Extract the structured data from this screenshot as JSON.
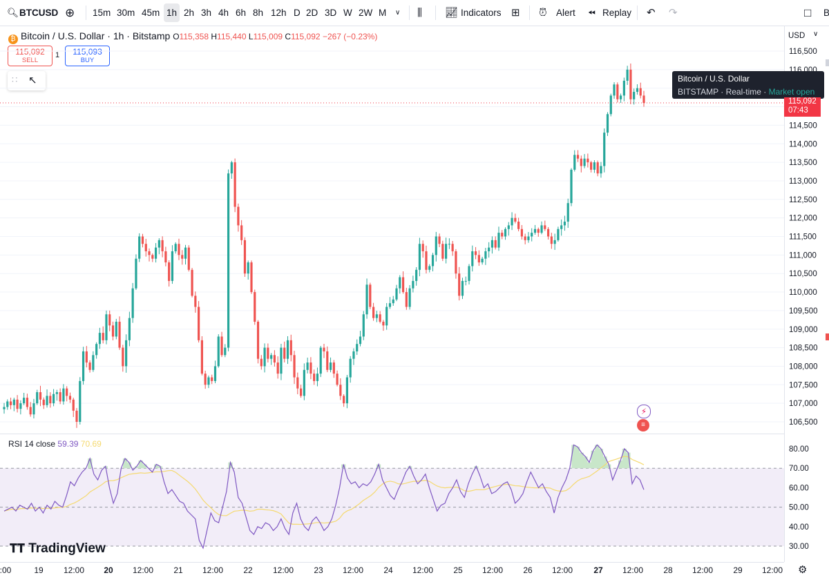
{
  "toolbar": {
    "symbol": "BTCUSD",
    "intervals": [
      "15m",
      "30m",
      "45m",
      "1h",
      "2h",
      "3h",
      "4h",
      "6h",
      "8h",
      "12h",
      "D",
      "2D",
      "3D",
      "W",
      "2W",
      "M"
    ],
    "active_interval": "1h",
    "indicators_label": "Indicators",
    "alert_label": "Alert",
    "replay_label": "Replay",
    "edge_label": "B"
  },
  "legend": {
    "title": "Bitcoin / U.S. Dollar · 1h · Bitstamp",
    "o_label": "O",
    "o": "115,358",
    "h_label": "H",
    "h": "115,440",
    "l_label": "L",
    "l": "115,009",
    "c_label": "C",
    "c": "115,092",
    "change": "−267 (−0.23%)"
  },
  "trade": {
    "sell_price": "115,092",
    "sell_label": "SELL",
    "qty": "1",
    "buy_price": "115,093",
    "buy_label": "BUY"
  },
  "tooltip": {
    "line1": "Bitcoin / U.S. Dollar",
    "exchange": "BITSTAMP",
    "feed": "Real-time",
    "status": "Market open"
  },
  "price_axis": {
    "currency": "USD",
    "current_price": "115,092",
    "countdown": "07:43"
  },
  "rsi": {
    "label": "RSI 14 close",
    "value": "59.39",
    "ma_value": "70.69"
  },
  "brand": "TradingView",
  "colors": {
    "up": "#26a69a",
    "down": "#ef5350",
    "rsi": "#7e57c2",
    "rsi_ma": "#f5d96e",
    "rsi_band": "#ede7f6",
    "current_price": "#f23645"
  },
  "chart_data": {
    "type": "candlestick",
    "price_ticks": [
      116500,
      116000,
      115500,
      115000,
      114500,
      114000,
      113500,
      113000,
      112500,
      112000,
      111500,
      111000,
      110500,
      110000,
      109500,
      109000,
      108500,
      108000,
      107500,
      107000,
      106500
    ],
    "price_tick_labels": [
      "116,500",
      "116,000",
      "115,500",
      "115,000",
      "114,500",
      "114,000",
      "113,500",
      "113,000",
      "112,500",
      "112,000",
      "111,500",
      "111,000",
      "110,500",
      "110,000",
      "109,500",
      "109,000",
      "108,500",
      "108,000",
      "107,500",
      "107,000",
      "106,500"
    ],
    "close_series": [
      106900,
      107050,
      106950,
      107100,
      106850,
      107000,
      107150,
      106900,
      106700,
      107000,
      107300,
      107100,
      106950,
      107200,
      107000,
      107250,
      107300,
      107050,
      107400,
      107200,
      107100,
      106800,
      106500,
      107600,
      108400,
      108100,
      107900,
      108300,
      108600,
      108900,
      108700,
      109400,
      109100,
      108800,
      109200,
      108500,
      108000,
      108700,
      109300,
      110100,
      110900,
      111500,
      111300,
      111100,
      111000,
      110900,
      111200,
      111400,
      111100,
      110800,
      110300,
      111100,
      111300,
      111000,
      110900,
      111200,
      110600,
      109900,
      109600,
      108700,
      107800,
      107500,
      107700,
      107600,
      108000,
      108800,
      108300,
      108500,
      113200,
      113500,
      112300,
      111800,
      111400,
      110500,
      110800,
      110000,
      109200,
      108200,
      108000,
      108500,
      108200,
      108300,
      108100,
      107800,
      108500,
      108200,
      108700,
      108300,
      107700,
      107400,
      107200,
      107900,
      108100,
      107800,
      107600,
      107800,
      108500,
      108400,
      107900,
      108100,
      107800,
      107500,
      107200,
      107000,
      107700,
      108200,
      108400,
      108600,
      108800,
      109400,
      110200,
      109600,
      109300,
      109400,
      109200,
      109100,
      109600,
      109700,
      109800,
      110100,
      110400,
      110000,
      109600,
      110100,
      110300,
      110600,
      111300,
      111100,
      110600,
      110700,
      111000,
      111500,
      111300,
      110900,
      111300,
      111300,
      111100,
      110500,
      109900,
      110300,
      110300,
      110700,
      111100,
      111000,
      110800,
      110900,
      111100,
      111200,
      111400,
      111200,
      111600,
      111500,
      111700,
      111800,
      112000,
      111900,
      111700,
      111500,
      111400,
      111500,
      111600,
      111700,
      111600,
      111800,
      111700,
      111500,
      111300,
      111400,
      111700,
      111800,
      111900,
      112400,
      113300,
      113700,
      113600,
      113400,
      113600,
      113500,
      113300,
      113500,
      113200,
      113400,
      114300,
      114800,
      115300,
      115600,
      115200,
      115300,
      115700,
      116000,
      115200,
      115400,
      115500,
      115300,
      115100
    ],
    "x_labels": [
      ":00",
      "19",
      "12:00",
      "20",
      "12:00",
      "21",
      "12:00",
      "22",
      "12:00",
      "23",
      "12:00",
      "24",
      "12:00",
      "25",
      "12:00",
      "26",
      "12:00",
      "27",
      "12:00",
      "28",
      "12:00",
      "29",
      "12:00"
    ],
    "x_bold": [
      false,
      false,
      false,
      true,
      false,
      false,
      false,
      false,
      false,
      false,
      false,
      false,
      false,
      false,
      false,
      false,
      false,
      true,
      false,
      false,
      false,
      false,
      false
    ],
    "rsi_ticks": [
      80,
      70,
      60,
      50,
      40,
      30
    ],
    "rsi_tick_labels": [
      "80.00",
      "70.00",
      "60.00",
      "50.00",
      "40.00",
      "30.00"
    ],
    "rsi_band": [
      30,
      70
    ],
    "rsi_values": [
      48,
      49,
      50,
      48,
      51,
      50,
      49,
      52,
      48,
      50,
      47,
      51,
      49,
      53,
      51,
      50,
      56,
      63,
      61,
      65,
      68,
      70,
      75,
      67,
      64,
      69,
      71,
      60,
      52,
      57,
      70,
      75,
      73,
      69,
      71,
      74,
      72,
      70,
      68,
      72,
      71,
      63,
      57,
      59,
      56,
      53,
      52,
      48,
      46,
      44,
      33,
      29,
      38,
      47,
      43,
      42,
      50,
      58,
      73,
      68,
      55,
      52,
      45,
      38,
      36,
      40,
      39,
      42,
      41,
      38,
      40,
      44,
      39,
      36,
      47,
      52,
      44,
      40,
      38,
      43,
      45,
      42,
      38,
      40,
      44,
      51,
      60,
      72,
      65,
      62,
      63,
      60,
      62,
      61,
      63,
      67,
      72,
      64,
      60,
      56,
      54,
      59,
      63,
      68,
      71,
      66,
      62,
      64,
      67,
      60,
      54,
      48,
      51,
      52,
      57,
      60,
      64,
      58,
      55,
      62,
      67,
      71,
      66,
      60,
      62,
      57,
      58,
      60,
      62,
      63,
      59,
      52,
      54,
      57,
      63,
      68,
      64,
      60,
      62,
      58,
      55,
      47,
      55,
      60,
      64,
      70,
      82,
      81,
      78,
      76,
      73,
      79,
      82,
      80,
      76,
      72,
      64,
      69,
      74,
      80,
      78,
      62,
      66,
      64,
      59
    ]
  }
}
